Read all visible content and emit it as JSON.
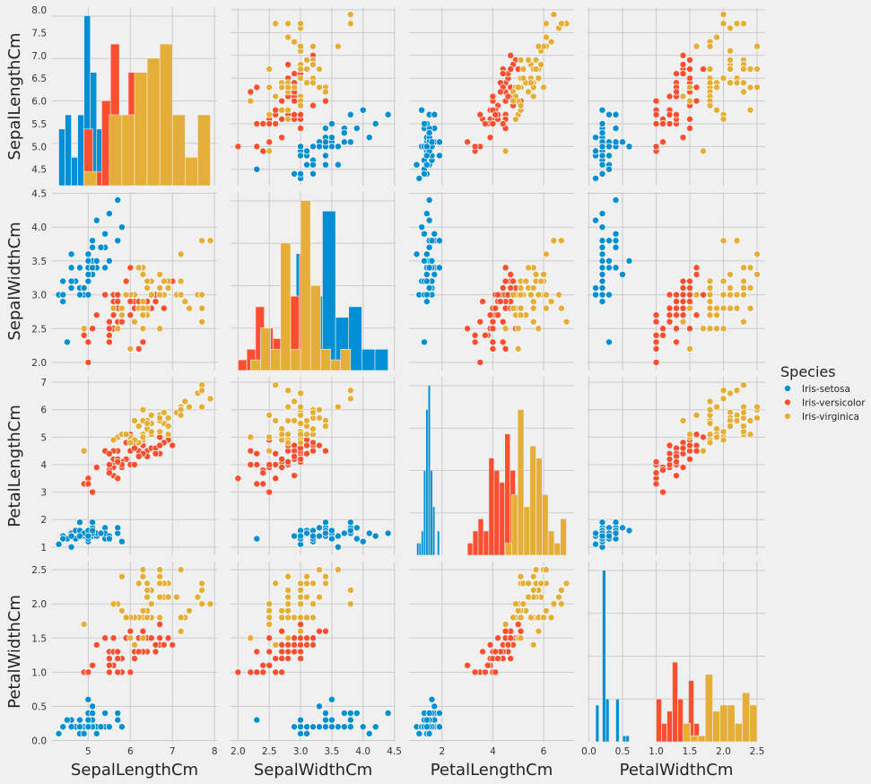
{
  "chart_data": {
    "type": "scatter",
    "kind": "pairplot",
    "title": "",
    "variables": [
      "SepalLengthCm",
      "SepalWidthCm",
      "PetalLengthCm",
      "PetalWidthCm"
    ],
    "legend": {
      "title": "Species",
      "placement": "right",
      "entries": [
        "Iris-setosa",
        "Iris-versicolor",
        "Iris-virginica"
      ]
    },
    "colors": {
      "Iris-setosa": "#008fd5",
      "Iris-versicolor": "#fc4f30",
      "Iris-virginica": "#e5ae38"
    },
    "grid": true,
    "axes": {
      "SepalLengthCm": {
        "range": [
          4.14,
          8.06
        ],
        "ticks": [
          5,
          6,
          7,
          8
        ],
        "ticks_y": [
          4.5,
          5.0,
          5.5,
          6.0,
          6.5,
          7.0,
          7.5,
          8.0
        ]
      },
      "SepalWidthCm": {
        "range": [
          1.88,
          4.52
        ],
        "ticks": [
          2.0,
          2.5,
          3.0,
          3.5,
          4.0,
          4.5
        ],
        "ticks_y": [
          2.0,
          2.5,
          3.0,
          3.5,
          4.0,
          4.5
        ]
      },
      "PetalLengthCm": {
        "range": [
          0.7,
          7.2
        ],
        "ticks": [
          2,
          4,
          6
        ],
        "ticks_y": [
          1,
          2,
          3,
          4,
          5,
          6,
          7
        ]
      },
      "PetalWidthCm": {
        "range": [
          -0.02,
          2.62
        ],
        "ticks": [
          0.0,
          0.5,
          1.0,
          1.5,
          2.0,
          2.5
        ],
        "ticks_y": [
          0.0,
          0.5,
          1.0,
          1.5,
          2.0,
          2.5
        ]
      }
    },
    "series": [
      {
        "name": "Iris-setosa",
        "points": [
          [
            5.1,
            3.5,
            1.4,
            0.2
          ],
          [
            4.9,
            3.0,
            1.4,
            0.2
          ],
          [
            4.7,
            3.2,
            1.3,
            0.2
          ],
          [
            4.6,
            3.1,
            1.5,
            0.2
          ],
          [
            5.0,
            3.6,
            1.4,
            0.2
          ],
          [
            5.4,
            3.9,
            1.7,
            0.4
          ],
          [
            4.6,
            3.4,
            1.4,
            0.3
          ],
          [
            5.0,
            3.4,
            1.5,
            0.2
          ],
          [
            4.4,
            2.9,
            1.4,
            0.2
          ],
          [
            4.9,
            3.1,
            1.5,
            0.1
          ],
          [
            5.4,
            3.7,
            1.5,
            0.2
          ],
          [
            4.8,
            3.4,
            1.6,
            0.2
          ],
          [
            4.8,
            3.0,
            1.4,
            0.1
          ],
          [
            4.3,
            3.0,
            1.1,
            0.1
          ],
          [
            5.8,
            4.0,
            1.2,
            0.2
          ],
          [
            5.7,
            4.4,
            1.5,
            0.4
          ],
          [
            5.4,
            3.9,
            1.3,
            0.4
          ],
          [
            5.1,
            3.5,
            1.4,
            0.3
          ],
          [
            5.7,
            3.8,
            1.7,
            0.3
          ],
          [
            5.1,
            3.8,
            1.5,
            0.3
          ],
          [
            5.4,
            3.4,
            1.7,
            0.2
          ],
          [
            5.1,
            3.7,
            1.5,
            0.4
          ],
          [
            4.6,
            3.6,
            1.0,
            0.2
          ],
          [
            5.1,
            3.3,
            1.7,
            0.5
          ],
          [
            4.8,
            3.4,
            1.9,
            0.2
          ],
          [
            5.0,
            3.0,
            1.6,
            0.2
          ],
          [
            5.0,
            3.4,
            1.6,
            0.4
          ],
          [
            5.2,
            3.5,
            1.5,
            0.2
          ],
          [
            5.2,
            3.4,
            1.4,
            0.2
          ],
          [
            4.7,
            3.2,
            1.6,
            0.2
          ],
          [
            4.8,
            3.1,
            1.6,
            0.2
          ],
          [
            5.4,
            3.4,
            1.5,
            0.4
          ],
          [
            5.2,
            4.1,
            1.5,
            0.1
          ],
          [
            5.5,
            4.2,
            1.4,
            0.2
          ],
          [
            4.9,
            3.1,
            1.5,
            0.1
          ],
          [
            5.0,
            3.2,
            1.2,
            0.2
          ],
          [
            5.5,
            3.5,
            1.3,
            0.2
          ],
          [
            4.9,
            3.1,
            1.5,
            0.1
          ],
          [
            4.4,
            3.0,
            1.3,
            0.2
          ],
          [
            5.1,
            3.4,
            1.5,
            0.2
          ],
          [
            5.0,
            3.5,
            1.3,
            0.3
          ],
          [
            4.5,
            2.3,
            1.3,
            0.3
          ],
          [
            4.4,
            3.2,
            1.3,
            0.2
          ],
          [
            5.0,
            3.5,
            1.6,
            0.6
          ],
          [
            5.1,
            3.8,
            1.9,
            0.4
          ],
          [
            4.8,
            3.0,
            1.4,
            0.3
          ],
          [
            5.1,
            3.8,
            1.6,
            0.2
          ],
          [
            4.6,
            3.2,
            1.4,
            0.2
          ],
          [
            5.3,
            3.7,
            1.5,
            0.2
          ],
          [
            5.0,
            3.3,
            1.4,
            0.2
          ]
        ]
      },
      {
        "name": "Iris-versicolor",
        "points": [
          [
            7.0,
            3.2,
            4.7,
            1.4
          ],
          [
            6.4,
            3.2,
            4.5,
            1.5
          ],
          [
            6.9,
            3.1,
            4.9,
            1.5
          ],
          [
            5.5,
            2.3,
            4.0,
            1.3
          ],
          [
            6.5,
            2.8,
            4.6,
            1.5
          ],
          [
            5.7,
            2.8,
            4.5,
            1.3
          ],
          [
            6.3,
            3.3,
            4.7,
            1.6
          ],
          [
            4.9,
            2.4,
            3.3,
            1.0
          ],
          [
            6.6,
            2.9,
            4.6,
            1.3
          ],
          [
            5.2,
            2.7,
            3.9,
            1.4
          ],
          [
            5.0,
            2.0,
            3.5,
            1.0
          ],
          [
            5.9,
            3.0,
            4.2,
            1.5
          ],
          [
            6.0,
            2.2,
            4.0,
            1.0
          ],
          [
            6.1,
            2.9,
            4.7,
            1.4
          ],
          [
            5.6,
            2.9,
            3.6,
            1.3
          ],
          [
            6.7,
            3.1,
            4.4,
            1.4
          ],
          [
            5.6,
            3.0,
            4.5,
            1.5
          ],
          [
            5.8,
            2.7,
            4.1,
            1.0
          ],
          [
            6.2,
            2.2,
            4.5,
            1.5
          ],
          [
            5.6,
            2.5,
            3.9,
            1.1
          ],
          [
            5.9,
            3.2,
            4.8,
            1.8
          ],
          [
            6.1,
            2.8,
            4.0,
            1.3
          ],
          [
            6.3,
            2.5,
            4.9,
            1.5
          ],
          [
            6.1,
            2.8,
            4.7,
            1.2
          ],
          [
            6.4,
            2.9,
            4.3,
            1.3
          ],
          [
            6.6,
            3.0,
            4.4,
            1.4
          ],
          [
            6.8,
            2.8,
            4.8,
            1.4
          ],
          [
            6.7,
            3.0,
            5.0,
            1.7
          ],
          [
            6.0,
            2.9,
            4.5,
            1.5
          ],
          [
            5.7,
            2.6,
            3.5,
            1.0
          ],
          [
            5.5,
            2.4,
            3.8,
            1.1
          ],
          [
            5.5,
            2.4,
            3.7,
            1.0
          ],
          [
            5.8,
            2.7,
            3.9,
            1.2
          ],
          [
            6.0,
            2.7,
            5.1,
            1.6
          ],
          [
            5.4,
            3.0,
            4.5,
            1.5
          ],
          [
            6.0,
            3.4,
            4.5,
            1.6
          ],
          [
            6.7,
            3.1,
            4.7,
            1.5
          ],
          [
            6.3,
            2.3,
            4.4,
            1.3
          ],
          [
            5.6,
            3.0,
            4.1,
            1.3
          ],
          [
            5.5,
            2.5,
            4.0,
            1.3
          ],
          [
            5.5,
            2.6,
            4.4,
            1.2
          ],
          [
            6.1,
            3.0,
            4.6,
            1.4
          ],
          [
            5.8,
            2.6,
            4.0,
            1.2
          ],
          [
            5.0,
            2.3,
            3.3,
            1.0
          ],
          [
            5.6,
            2.7,
            4.2,
            1.3
          ],
          [
            5.7,
            3.0,
            4.2,
            1.2
          ],
          [
            5.7,
            2.9,
            4.2,
            1.3
          ],
          [
            6.2,
            2.9,
            4.3,
            1.3
          ],
          [
            5.1,
            2.5,
            3.0,
            1.1
          ],
          [
            5.7,
            2.8,
            4.1,
            1.3
          ]
        ]
      },
      {
        "name": "Iris-virginica",
        "points": [
          [
            6.3,
            3.3,
            6.0,
            2.5
          ],
          [
            5.8,
            2.7,
            5.1,
            1.9
          ],
          [
            7.1,
            3.0,
            5.9,
            2.1
          ],
          [
            6.3,
            2.9,
            5.6,
            1.8
          ],
          [
            6.5,
            3.0,
            5.8,
            2.2
          ],
          [
            7.6,
            3.0,
            6.6,
            2.1
          ],
          [
            4.9,
            2.5,
            4.5,
            1.7
          ],
          [
            7.3,
            2.9,
            6.3,
            1.8
          ],
          [
            6.7,
            2.5,
            5.8,
            1.8
          ],
          [
            7.2,
            3.6,
            6.1,
            2.5
          ],
          [
            6.5,
            3.2,
            5.1,
            2.0
          ],
          [
            6.4,
            2.7,
            5.3,
            1.9
          ],
          [
            6.8,
            3.0,
            5.5,
            2.1
          ],
          [
            5.7,
            2.5,
            5.0,
            2.0
          ],
          [
            5.8,
            2.8,
            5.1,
            2.4
          ],
          [
            6.4,
            3.2,
            5.3,
            2.3
          ],
          [
            6.5,
            3.0,
            5.5,
            1.8
          ],
          [
            7.7,
            3.8,
            6.7,
            2.2
          ],
          [
            7.7,
            2.6,
            6.9,
            2.3
          ],
          [
            6.0,
            2.2,
            5.0,
            1.5
          ],
          [
            6.9,
            3.2,
            5.7,
            2.3
          ],
          [
            5.6,
            2.8,
            4.9,
            2.0
          ],
          [
            7.7,
            2.8,
            6.7,
            2.0
          ],
          [
            6.3,
            2.7,
            4.9,
            1.8
          ],
          [
            6.7,
            3.3,
            5.7,
            2.1
          ],
          [
            7.2,
            3.2,
            6.0,
            1.8
          ],
          [
            6.2,
            2.8,
            4.8,
            1.8
          ],
          [
            6.1,
            3.0,
            4.9,
            1.8
          ],
          [
            6.4,
            2.8,
            5.6,
            2.1
          ],
          [
            7.2,
            3.0,
            5.8,
            1.6
          ],
          [
            7.4,
            2.8,
            6.1,
            1.9
          ],
          [
            7.9,
            3.8,
            6.4,
            2.0
          ],
          [
            6.4,
            2.8,
            5.6,
            2.2
          ],
          [
            6.3,
            2.8,
            5.1,
            1.5
          ],
          [
            6.1,
            2.6,
            5.6,
            1.4
          ],
          [
            7.7,
            3.0,
            6.1,
            2.3
          ],
          [
            6.3,
            3.4,
            5.6,
            2.4
          ],
          [
            6.4,
            3.1,
            5.5,
            1.8
          ],
          [
            6.0,
            3.0,
            4.8,
            1.8
          ],
          [
            6.9,
            3.1,
            5.4,
            2.1
          ],
          [
            6.7,
            3.1,
            5.6,
            2.4
          ],
          [
            6.9,
            3.1,
            5.1,
            2.3
          ],
          [
            5.8,
            2.7,
            5.1,
            1.9
          ],
          [
            6.8,
            3.2,
            5.9,
            2.3
          ],
          [
            6.7,
            3.3,
            5.7,
            2.5
          ],
          [
            6.7,
            3.0,
            5.2,
            2.3
          ],
          [
            6.3,
            2.5,
            5.0,
            1.9
          ],
          [
            6.5,
            3.0,
            5.2,
            2.0
          ],
          [
            6.2,
            3.4,
            5.4,
            2.3
          ],
          [
            5.9,
            3.0,
            5.1,
            1.8
          ]
        ]
      }
    ]
  }
}
